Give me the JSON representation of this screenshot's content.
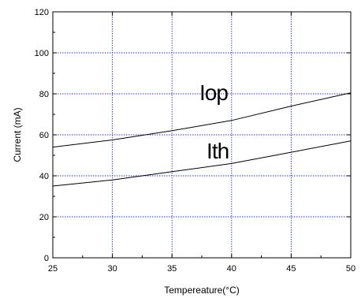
{
  "chart_data": {
    "type": "line",
    "xlabel": "Tempereature(°C)",
    "ylabel": "Current (mA)",
    "xlim": [
      25,
      50
    ],
    "ylim": [
      0,
      120
    ],
    "x_ticks": [
      25,
      30,
      35,
      40,
      45,
      50
    ],
    "y_ticks": [
      0,
      20,
      40,
      60,
      80,
      100,
      120
    ],
    "grid": true,
    "grid_color": "#2b35e0",
    "series": [
      {
        "name": "Iop",
        "x": [
          25,
          30,
          35,
          40,
          45,
          50
        ],
        "values": [
          54,
          57.5,
          62,
          67,
          74,
          80.5
        ]
      },
      {
        "name": "Ith",
        "x": [
          25,
          30,
          35,
          40,
          45,
          50
        ],
        "values": [
          35,
          38,
          42,
          46,
          51.5,
          57
        ]
      }
    ],
    "series_label_positions": [
      {
        "name": "Iop",
        "x": 37.3,
        "y": 77
      },
      {
        "name": "Ith",
        "x": 37.9,
        "y": 48.5
      }
    ]
  }
}
